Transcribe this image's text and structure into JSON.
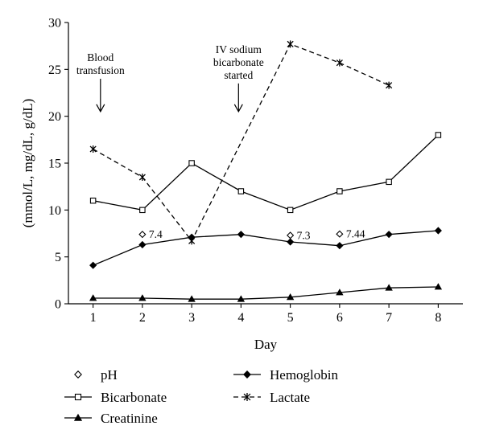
{
  "chart_data": {
    "type": "line",
    "title": "",
    "xlabel": "Day",
    "ylabel": "(mmol/L, mg/dL, g/dL)",
    "xlim": [
      0.5,
      8.5
    ],
    "ylim": [
      0,
      30
    ],
    "x_ticks": [
      1,
      2,
      3,
      4,
      5,
      6,
      7,
      8
    ],
    "y_ticks": [
      0,
      5,
      10,
      15,
      20,
      25,
      30
    ],
    "grid": false,
    "legend_position": "bottom",
    "series": [
      {
        "name": "pH",
        "marker": "diamond-open",
        "line": "none",
        "color": "#000000",
        "points": [
          {
            "x": 2,
            "y": 7.4,
            "label": "7.4"
          },
          {
            "x": 5,
            "y": 7.3,
            "label": "7.3"
          },
          {
            "x": 6,
            "y": 7.44,
            "label": "7.44"
          }
        ]
      },
      {
        "name": "Bicarbonate",
        "marker": "square-open",
        "line": "solid",
        "color": "#000000",
        "points": [
          {
            "x": 1,
            "y": 11
          },
          {
            "x": 2,
            "y": 10
          },
          {
            "x": 3,
            "y": 15
          },
          {
            "x": 4,
            "y": 12
          },
          {
            "x": 5,
            "y": 10
          },
          {
            "x": 6,
            "y": 12
          },
          {
            "x": 7,
            "y": 13
          },
          {
            "x": 8,
            "y": 18
          }
        ]
      },
      {
        "name": "Creatinine",
        "marker": "triangle-filled",
        "line": "solid",
        "color": "#000000",
        "points": [
          {
            "x": 1,
            "y": 0.6
          },
          {
            "x": 2,
            "y": 0.6
          },
          {
            "x": 3,
            "y": 0.5
          },
          {
            "x": 4,
            "y": 0.5
          },
          {
            "x": 5,
            "y": 0.7
          },
          {
            "x": 6,
            "y": 1.2
          },
          {
            "x": 7,
            "y": 1.7
          },
          {
            "x": 8,
            "y": 1.8
          }
        ]
      },
      {
        "name": "Hemoglobin",
        "marker": "diamond-filled",
        "line": "solid",
        "color": "#000000",
        "points": [
          {
            "x": 1,
            "y": 4.1
          },
          {
            "x": 2,
            "y": 6.3
          },
          {
            "x": 3,
            "y": 7.1
          },
          {
            "x": 4,
            "y": 7.4
          },
          {
            "x": 5,
            "y": 6.6
          },
          {
            "x": 6,
            "y": 6.2
          },
          {
            "x": 7,
            "y": 7.4
          },
          {
            "x": 8,
            "y": 7.8
          }
        ]
      },
      {
        "name": "Lactate",
        "marker": "star",
        "line": "dashed",
        "color": "#000000",
        "points": [
          {
            "x": 1,
            "y": 16.5
          },
          {
            "x": 2,
            "y": 13.5
          },
          {
            "x": 3,
            "y": 6.7
          },
          {
            "x": 5,
            "y": 27.7
          },
          {
            "x": 6,
            "y": 25.7
          },
          {
            "x": 7,
            "y": 23.3
          }
        ]
      }
    ],
    "annotations": [
      {
        "lines": [
          "Blood",
          "transfusion"
        ],
        "x": 1.15,
        "arrow_from_y": 24,
        "arrow_to_y": 20.5
      },
      {
        "lines": [
          "IV sodium",
          "bicarbonate",
          "started"
        ],
        "x": 3.95,
        "arrow_from_y": 23.5,
        "arrow_to_y": 20.5
      }
    ]
  }
}
